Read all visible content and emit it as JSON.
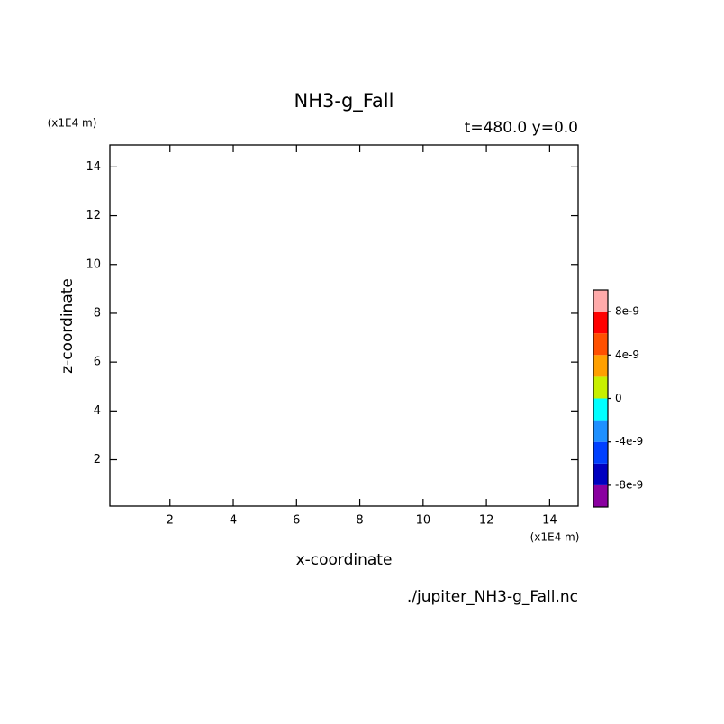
{
  "chart_data": {
    "type": "contour",
    "title": "NH3-g_Fall",
    "subtitle": "t=480.0 y=0.0",
    "x_label": "x-coordinate",
    "y_label": "z-coordinate",
    "x_unit": "(x1E4 m)",
    "y_unit": "(x1E4 m)",
    "source": "./jupiter_NH3-g_Fall.nc",
    "xlim": [
      0.1,
      14.9
    ],
    "ylim": [
      0.1,
      14.9
    ],
    "xticks": [
      2,
      4,
      6,
      8,
      10,
      12,
      14
    ],
    "yticks": [
      2,
      4,
      6,
      8,
      10,
      12,
      14
    ],
    "colorbar": {
      "levels": [
        -1e-08,
        -8e-09,
        -6e-09,
        -4e-09,
        -2e-09,
        0,
        2e-09,
        4e-09,
        6e-09,
        8e-09,
        1e-08
      ],
      "colors": [
        "#8a00a0",
        "#0000c0",
        "#0040ff",
        "#1e90ff",
        "#00ffff",
        "#c8f000",
        "#ffa000",
        "#ff5000",
        "#ff0000",
        "#ffaaaa"
      ],
      "ticks": [
        -8e-09,
        -4e-09,
        0,
        4e-09,
        8e-09
      ]
    }
  }
}
